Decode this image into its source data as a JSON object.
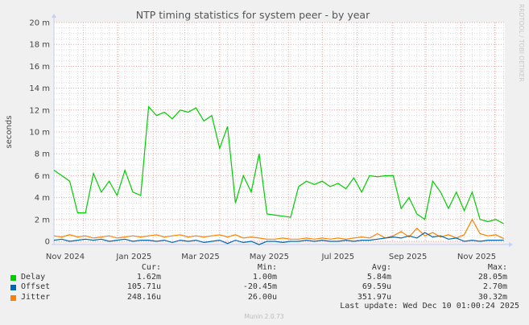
{
  "chart_data": {
    "type": "line",
    "title": "NTP timing statistics for system peer - by year",
    "ylabel": "seconds",
    "watermark": "RRDTOOL / TOBI OETIKER",
    "footer": "Munin 2.0.73",
    "ylim": [
      0,
      20
    ],
    "y_unit": "m",
    "y_ticks": [
      "0",
      "2 m",
      "4 m",
      "6 m",
      "8 m",
      "10 m",
      "12 m",
      "14 m",
      "16 m",
      "18 m",
      "20 m"
    ],
    "x_range": [
      "2024-11-05",
      "2025-12-10"
    ],
    "x_ticks": [
      {
        "label": "Nov 2024",
        "date": "2024-11-15"
      },
      {
        "label": "Jan 2025",
        "date": "2025-01-15"
      },
      {
        "label": "Mar 2025",
        "date": "2025-03-15"
      },
      {
        "label": "May 2025",
        "date": "2025-05-15"
      },
      {
        "label": "Jul 2025",
        "date": "2025-07-15"
      },
      {
        "label": "Sep 2025",
        "date": "2025-09-15"
      },
      {
        "label": "Nov 2025",
        "date": "2025-11-15"
      }
    ],
    "grid": true,
    "x": [
      "2024-11-05",
      "2024-11-12",
      "2024-11-19",
      "2024-11-26",
      "2024-12-03",
      "2024-12-10",
      "2024-12-17",
      "2024-12-24",
      "2024-12-31",
      "2025-01-07",
      "2025-01-14",
      "2025-01-21",
      "2025-01-28",
      "2025-02-04",
      "2025-02-11",
      "2025-02-18",
      "2025-02-25",
      "2025-03-04",
      "2025-03-11",
      "2025-03-18",
      "2025-03-25",
      "2025-04-01",
      "2025-04-08",
      "2025-04-15",
      "2025-04-22",
      "2025-04-29",
      "2025-05-06",
      "2025-05-13",
      "2025-05-20",
      "2025-05-27",
      "2025-06-03",
      "2025-06-10",
      "2025-06-17",
      "2025-06-24",
      "2025-07-01",
      "2025-07-08",
      "2025-07-15",
      "2025-07-22",
      "2025-07-29",
      "2025-08-05",
      "2025-08-12",
      "2025-08-19",
      "2025-08-26",
      "2025-09-02",
      "2025-09-09",
      "2025-09-16",
      "2025-09-23",
      "2025-09-30",
      "2025-10-07",
      "2025-10-14",
      "2025-10-21",
      "2025-10-28",
      "2025-11-04",
      "2025-11-11",
      "2025-11-18",
      "2025-11-25",
      "2025-12-02",
      "2025-12-09"
    ],
    "series": [
      {
        "name": "Delay",
        "color": "#00CC00",
        "values": [
          6.5,
          6.0,
          5.5,
          2.6,
          2.6,
          6.2,
          4.5,
          5.5,
          4.2,
          6.5,
          4.5,
          4.2,
          12.3,
          11.5,
          11.8,
          11.2,
          12.0,
          11.8,
          12.2,
          11.0,
          11.5,
          8.5,
          10.5,
          3.5,
          6.0,
          4.5,
          8.0,
          2.5,
          2.4,
          2.3,
          2.2,
          5.0,
          5.5,
          5.2,
          5.5,
          5.0,
          5.3,
          4.8,
          5.8,
          4.5,
          6.0,
          5.9,
          6.0,
          6.0,
          3.0,
          4.0,
          2.5,
          2.0,
          5.5,
          4.5,
          3.0,
          4.5,
          2.8,
          4.5,
          2.0,
          1.8,
          2.0,
          1.62
        ],
        "cur": "1.62m",
        "min": "1.00m",
        "avg": "5.84m",
        "max": "28.05m"
      },
      {
        "name": "Offset",
        "color": "#0066B3",
        "values": [
          0.1,
          0.2,
          0.0,
          0.1,
          0.2,
          0.1,
          0.2,
          0.0,
          0.1,
          0.2,
          0.0,
          0.1,
          0.1,
          0.0,
          0.1,
          -0.1,
          0.1,
          0.0,
          0.1,
          -0.1,
          0.0,
          0.1,
          -0.2,
          0.1,
          -0.1,
          0.0,
          -0.3,
          0.0,
          0.0,
          -0.1,
          0.0,
          0.0,
          0.1,
          0.0,
          0.1,
          0.0,
          0.0,
          0.1,
          0.0,
          0.1,
          0.1,
          0.2,
          0.3,
          0.4,
          0.3,
          0.5,
          0.3,
          0.8,
          0.4,
          0.5,
          0.2,
          0.3,
          0.0,
          0.1,
          0.0,
          0.1,
          0.1,
          0.11
        ],
        "cur": "105.71u",
        "min": "-20.45m",
        "avg": "69.59u",
        "max": "2.70m"
      },
      {
        "name": "Jitter",
        "color": "#FF8000",
        "values": [
          0.5,
          0.4,
          0.6,
          0.4,
          0.5,
          0.3,
          0.4,
          0.5,
          0.3,
          0.4,
          0.5,
          0.4,
          0.5,
          0.6,
          0.4,
          0.5,
          0.6,
          0.4,
          0.5,
          0.4,
          0.5,
          0.6,
          0.4,
          0.6,
          0.3,
          0.4,
          0.3,
          0.2,
          0.2,
          0.3,
          0.2,
          0.2,
          0.3,
          0.2,
          0.3,
          0.2,
          0.3,
          0.2,
          0.3,
          0.4,
          0.3,
          0.7,
          0.3,
          0.5,
          0.9,
          0.4,
          1.2,
          0.5,
          0.8,
          0.4,
          0.6,
          0.3,
          0.6,
          2.0,
          0.7,
          0.5,
          0.6,
          0.25
        ],
        "cur": "248.16u",
        "min": "26.00u",
        "avg": "351.97u",
        "max": "30.32m"
      }
    ],
    "legend": {
      "headers": {
        "cur": "Cur:",
        "min": "Min:",
        "avg": "Avg:",
        "max": "Max:"
      },
      "last_update": "Last update: Wed Dec 10 01:00:24 2025"
    }
  }
}
